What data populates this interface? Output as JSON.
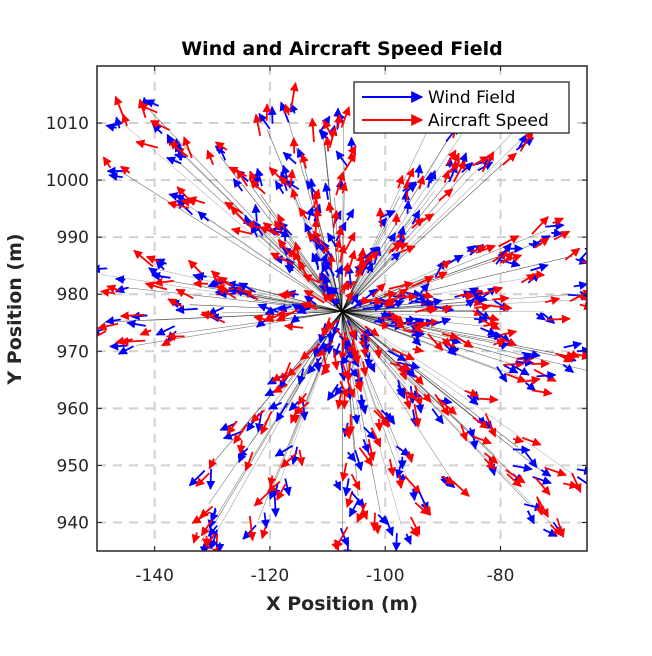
{
  "chart_data": {
    "type": "scatter",
    "subtype": "quiver",
    "title": "Wind and Aircraft Speed Field",
    "xlabel": "X Position (m)",
    "ylabel": "Y Position (m)",
    "xlim": [
      -150,
      -65
    ],
    "ylim": [
      935,
      1020
    ],
    "xticks": [
      -140,
      -120,
      -100,
      -80
    ],
    "yticks": [
      940,
      950,
      960,
      970,
      980,
      990,
      1000,
      1010
    ],
    "grid": true,
    "legend": {
      "position": "top-right"
    },
    "center": [
      -107.5,
      977
    ],
    "colors": {
      "wind": "#0000ff",
      "aircraft": "#ff0000",
      "trail": "#000000"
    },
    "series": [
      {
        "name": "Wind Field",
        "color": "#0000ff",
        "marker": "arrow"
      },
      {
        "name": "Aircraft Speed",
        "color": "#ff0000",
        "marker": "arrow"
      }
    ],
    "arms": [
      {
        "angle_deg": 135,
        "start": 3,
        "end": 50
      },
      {
        "angle_deg": 55,
        "start": 3,
        "end": 48
      },
      {
        "angle_deg": 12,
        "start": 5,
        "end": 42
      },
      {
        "angle_deg": -8,
        "start": 5,
        "end": 44
      },
      {
        "angle_deg": -45,
        "start": 3,
        "end": 52
      },
      {
        "angle_deg": -80,
        "start": 3,
        "end": 40
      },
      {
        "angle_deg": -120,
        "start": 3,
        "end": 48
      },
      {
        "angle_deg": 178,
        "start": 5,
        "end": 42
      },
      {
        "angle_deg": 100,
        "start": 3,
        "end": 36
      }
    ]
  }
}
